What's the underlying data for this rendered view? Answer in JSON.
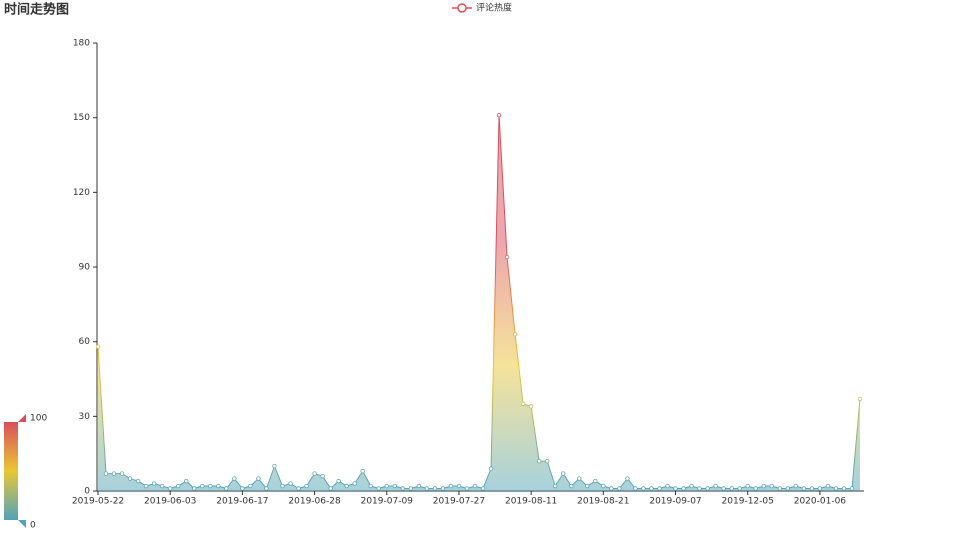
{
  "chart_data": {
    "type": "area",
    "title": "时间走势图",
    "categories": [
      "2019-05-22",
      null,
      null,
      null,
      null,
      null,
      null,
      null,
      null,
      "2019-06-03",
      null,
      null,
      null,
      null,
      null,
      null,
      null,
      null,
      "2019-06-17",
      null,
      null,
      null,
      null,
      null,
      null,
      null,
      null,
      "2019-06-28",
      null,
      null,
      null,
      null,
      null,
      null,
      null,
      null,
      "2019-07-09",
      null,
      null,
      null,
      null,
      null,
      null,
      null,
      null,
      "2019-07-27",
      null,
      null,
      null,
      null,
      null,
      null,
      null,
      null,
      "2019-08-11",
      null,
      null,
      null,
      null,
      null,
      null,
      null,
      null,
      "2019-08-21",
      null,
      null,
      null,
      null,
      null,
      null,
      null,
      null,
      "2019-09-07",
      null,
      null,
      null,
      null,
      null,
      null,
      null,
      null,
      "2019-12-05",
      null,
      null,
      null,
      null,
      null,
      null,
      null,
      null,
      "2020-01-06",
      null,
      null,
      null,
      null,
      null
    ],
    "series": [
      {
        "name": "评论热度",
        "color": "#d94e5d",
        "values": [
          58,
          7,
          7,
          7,
          5,
          4,
          2,
          3,
          2,
          1,
          2,
          4,
          1,
          2,
          2,
          2,
          1,
          5,
          1,
          2,
          5,
          1,
          10,
          2,
          3,
          1,
          2,
          7,
          6,
          1,
          4,
          2,
          3,
          8,
          2,
          1,
          2,
          2,
          1,
          1,
          2,
          1,
          1,
          1,
          2,
          2,
          1,
          2,
          1,
          9,
          151,
          94,
          63,
          35,
          34,
          12,
          12,
          2,
          7,
          2,
          5,
          2,
          4,
          2,
          1,
          1,
          5,
          1,
          1,
          1,
          1,
          2,
          1,
          1,
          2,
          1,
          1,
          2,
          1,
          1,
          1,
          2,
          1,
          2,
          2,
          1,
          1,
          2,
          1,
          1,
          1,
          2,
          1,
          1,
          1,
          37
        ]
      }
    ],
    "ylim": [
      0,
      180
    ],
    "yticks": [
      0,
      30,
      60,
      90,
      120,
      150,
      180
    ],
    "visual_map": {
      "min": 0,
      "max": 100,
      "colors": [
        "#50a3ba",
        "#eac736",
        "#d94e5d"
      ]
    }
  }
}
